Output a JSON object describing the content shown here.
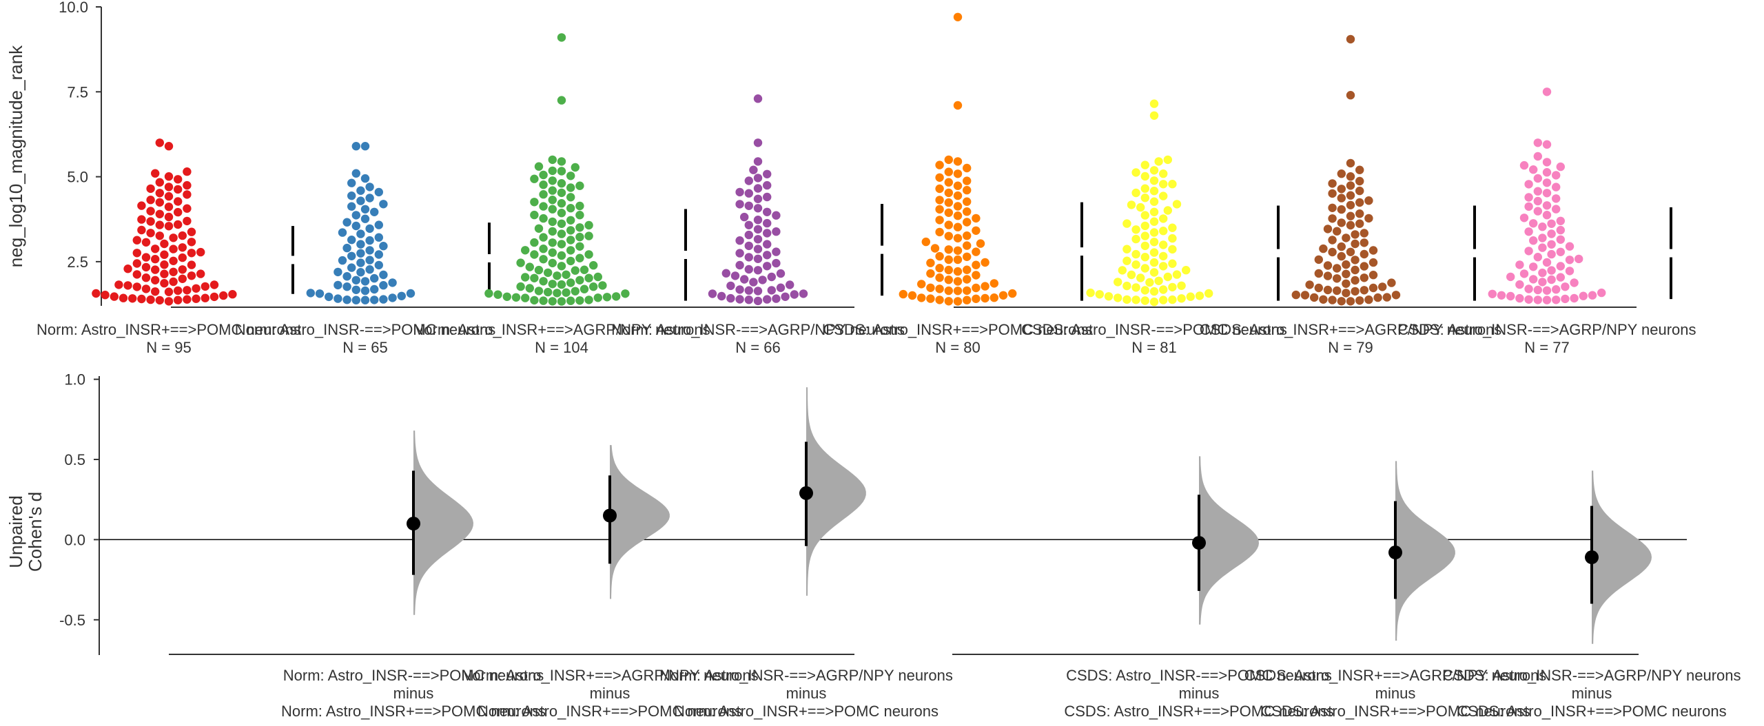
{
  "chart_data": [
    {
      "type": "swarm",
      "ylabel": "neg_log10_magnitude_rank",
      "ylim": [
        1.2,
        10.0
      ],
      "yticks": [
        "2.5",
        "5.0",
        "7.5",
        "10.0"
      ],
      "groups": [
        {
          "label": "Norm: Astro_INSR+==>POMC neurons",
          "n_label": "N = 95",
          "n": 95,
          "color": "#e41a1c",
          "mean": 2.55,
          "sd": 1.0,
          "max": 6.0,
          "extremes": [
            6.0,
            5.9,
            5.15,
            5.1
          ]
        },
        {
          "label": "Norm: Astro_INSR-==>POMC neurons",
          "n_label": "N = 65",
          "n": 65,
          "color": "#377eb8",
          "mean": 2.6,
          "sd": 1.05,
          "max": 5.9,
          "extremes": [
            5.9,
            5.9,
            5.1,
            4.95
          ]
        },
        {
          "label": "Norm: Astro_INSR+==>AGRP/NPY neurons",
          "n_label": "N = 104",
          "n": 104,
          "color": "#4daf4a",
          "mean": 2.7,
          "sd": 1.35,
          "max": 9.1,
          "extremes": [
            9.1,
            7.25,
            5.5,
            5.45
          ]
        },
        {
          "label": "Norm: Astro_INSR-==>AGRP/NPY neurons",
          "n_label": "N = 66",
          "n": 66,
          "color": "#984ea3",
          "mean": 2.85,
          "sd": 1.35,
          "max": 7.3,
          "extremes": [
            7.3,
            6.0,
            5.45,
            5.2
          ]
        },
        {
          "label": "CSDS: Astro_INSR+==>POMC neurons",
          "n_label": "N = 80",
          "n": 80,
          "color": "#ff7f00",
          "mean": 2.8,
          "sd": 1.45,
          "max": 9.7,
          "extremes": [
            9.7,
            7.1,
            5.5,
            5.45
          ]
        },
        {
          "label": "CSDS: Astro_INSR-==>POMC neurons",
          "n_label": "N = 81",
          "n": 81,
          "color": "#ffff33",
          "mean": 2.75,
          "sd": 1.4,
          "max": 7.15,
          "extremes": [
            7.15,
            6.8,
            5.5,
            5.45
          ]
        },
        {
          "label": "CSDS: Astro_INSR+==>AGRP/NPY neurons",
          "n_label": "N = 79",
          "n": 79,
          "color": "#a65628",
          "mean": 2.75,
          "sd": 1.4,
          "max": 9.05,
          "extremes": [
            9.05,
            7.4,
            5.4,
            5.2
          ]
        },
        {
          "label": "CSDS: Astro_INSR-==>AGRP/NPY neurons",
          "n_label": "N = 77",
          "n": 77,
          "color": "#f781bf",
          "mean": 2.75,
          "sd": 1.35,
          "max": 7.5,
          "extremes": [
            7.5,
            6.0,
            5.95,
            5.6
          ]
        }
      ]
    },
    {
      "type": "estimation",
      "ylabel_lines": [
        "Unpaired",
        "Cohen's d"
      ],
      "ylim": [
        -0.72,
        1.02
      ],
      "yticks": [
        "-0.5",
        "0.0",
        "0.5",
        "1.0"
      ],
      "comparisons": [
        {
          "test": "Norm: Astro_INSR-==>POMC neurons",
          "minus": "minus",
          "control": "Norm: Astro_INSR+==>POMC neurons",
          "d": 0.1,
          "ci": [
            -0.22,
            0.43
          ],
          "dist_range": [
            -0.47,
            0.68
          ]
        },
        {
          "test": "Norm: Astro_INSR+==>AGRP/NPY neurons",
          "minus": "minus",
          "control": "Norm: Astro_INSR+==>POMC neurons",
          "d": 0.15,
          "ci": [
            -0.15,
            0.4
          ],
          "dist_range": [
            -0.37,
            0.59
          ]
        },
        {
          "test": "Norm: Astro_INSR-==>AGRP/NPY neurons",
          "minus": "minus",
          "control": "Norm: Astro_INSR+==>POMC neurons",
          "d": 0.29,
          "ci": [
            -0.04,
            0.61
          ],
          "dist_range": [
            -0.35,
            0.95
          ]
        },
        {
          "test": "CSDS: Astro_INSR-==>POMC neurons",
          "minus": "minus",
          "control": "CSDS: Astro_INSR+==>POMC neurons",
          "d": -0.02,
          "ci": [
            -0.32,
            0.28
          ],
          "dist_range": [
            -0.53,
            0.52
          ]
        },
        {
          "test": "CSDS: Astro_INSR+==>AGRP/NPY neurons",
          "minus": "minus",
          "control": "CSDS: Astro_INSR+==>POMC neurons",
          "d": -0.08,
          "ci": [
            -0.37,
            0.24
          ],
          "dist_range": [
            -0.63,
            0.49
          ]
        },
        {
          "test": "CSDS: Astro_INSR-==>AGRP/NPY neurons",
          "minus": "minus",
          "control": "CSDS: Astro_INSR+==>POMC neurons",
          "d": -0.11,
          "ci": [
            -0.4,
            0.21
          ],
          "dist_range": [
            -0.65,
            0.43
          ]
        }
      ]
    }
  ]
}
